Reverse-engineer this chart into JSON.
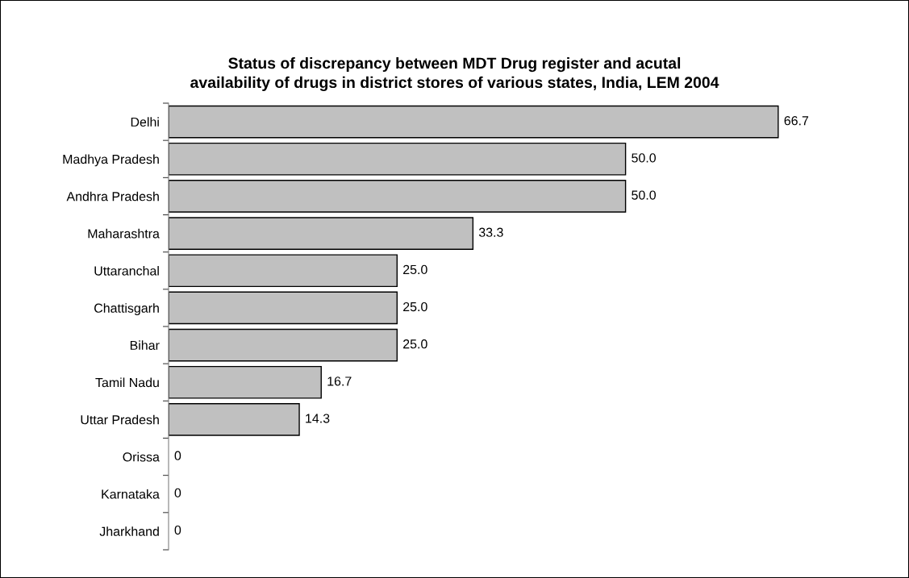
{
  "chart_data": {
    "type": "bar",
    "orientation": "horizontal",
    "title": "Status of discrepancy between MDT Drug register and acutal\navailability of drugs in district stores of various states, India, LEM 2004",
    "categories": [
      "Delhi",
      "Madhya Pradesh",
      "Andhra Pradesh",
      "Maharashtra",
      "Uttaranchal",
      "Chattisgarh",
      "Bihar",
      "Tamil Nadu",
      "Uttar Pradesh",
      "Orissa",
      "Karnataka",
      "Jharkhand"
    ],
    "values": [
      66.7,
      50.0,
      50.0,
      33.3,
      25.0,
      25.0,
      25.0,
      16.7,
      14.3,
      0,
      0,
      0
    ],
    "value_labels": [
      "66.7",
      "50.0",
      "50.0",
      "33.3",
      "25.0",
      "25.0",
      "25.0",
      "16.7",
      "14.3",
      "0",
      "0",
      "0"
    ],
    "color": "#c0c0c0",
    "grid": false,
    "legend": false
  }
}
